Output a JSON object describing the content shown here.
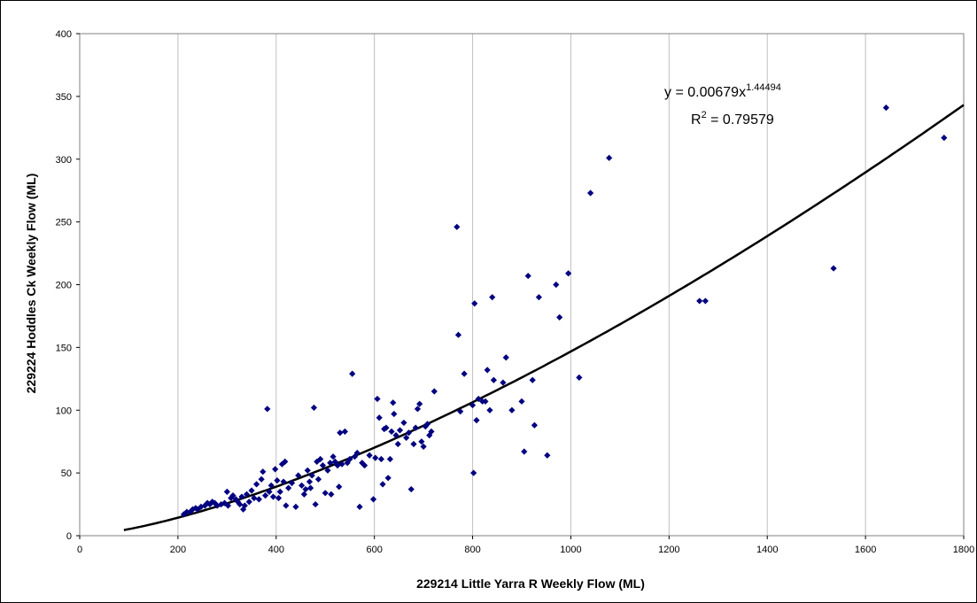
{
  "chart_data": {
    "type": "scatter",
    "title": "",
    "xlabel": "229214 Little Yarra R Weekly Flow (ML)",
    "ylabel": "229224 Hoddles Ck Weekly Flow (ML)",
    "xlim": [
      0,
      1800
    ],
    "ylim": [
      0,
      400
    ],
    "xticks": [
      0,
      200,
      400,
      600,
      800,
      1000,
      1200,
      1400,
      1600,
      1800
    ],
    "yticks": [
      0,
      50,
      100,
      150,
      200,
      250,
      300,
      350,
      400
    ],
    "grid": "vertical",
    "legend": "none",
    "marker": "diamond",
    "marker_color": "#000080",
    "trendline": {
      "type": "power",
      "a": 0.00679,
      "b": 1.44494,
      "x_range": [
        90,
        1800
      ],
      "color": "#000000",
      "equation_text": "y = 0.00679x",
      "equation_exponent": "1.44494",
      "r2_prefix": "R",
      "r2_exponent": "2",
      "r2_suffix": " = 0.79579"
    },
    "points": [
      [
        212,
        17
      ],
      [
        218,
        19
      ],
      [
        225,
        19
      ],
      [
        230,
        21
      ],
      [
        236,
        22
      ],
      [
        240,
        21
      ],
      [
        247,
        23
      ],
      [
        255,
        24
      ],
      [
        260,
        26
      ],
      [
        265,
        25
      ],
      [
        270,
        27
      ],
      [
        275,
        26
      ],
      [
        280,
        24
      ],
      [
        288,
        25
      ],
      [
        295,
        26
      ],
      [
        300,
        35
      ],
      [
        302,
        24
      ],
      [
        308,
        30
      ],
      [
        312,
        32
      ],
      [
        318,
        29
      ],
      [
        322,
        27
      ],
      [
        326,
        25
      ],
      [
        330,
        31
      ],
      [
        333,
        21
      ],
      [
        336,
        24
      ],
      [
        340,
        33
      ],
      [
        345,
        27
      ],
      [
        350,
        36
      ],
      [
        355,
        30
      ],
      [
        360,
        41
      ],
      [
        365,
        29
      ],
      [
        370,
        45
      ],
      [
        373,
        51
      ],
      [
        378,
        32
      ],
      [
        382,
        101
      ],
      [
        386,
        35
      ],
      [
        390,
        40
      ],
      [
        394,
        31
      ],
      [
        398,
        53
      ],
      [
        402,
        44
      ],
      [
        405,
        30
      ],
      [
        408,
        35
      ],
      [
        412,
        57
      ],
      [
        415,
        43
      ],
      [
        418,
        59
      ],
      [
        420,
        24
      ],
      [
        425,
        38
      ],
      [
        432,
        42
      ],
      [
        440,
        23
      ],
      [
        445,
        48
      ],
      [
        452,
        40
      ],
      [
        457,
        33
      ],
      [
        460,
        37
      ],
      [
        464,
        52
      ],
      [
        468,
        43
      ],
      [
        470,
        38
      ],
      [
        473,
        48
      ],
      [
        477,
        102
      ],
      [
        480,
        25
      ],
      [
        483,
        59
      ],
      [
        486,
        45
      ],
      [
        490,
        61
      ],
      [
        495,
        56
      ],
      [
        500,
        34
      ],
      [
        505,
        52
      ],
      [
        510,
        58
      ],
      [
        512,
        33
      ],
      [
        516,
        63
      ],
      [
        520,
        59
      ],
      [
        525,
        56
      ],
      [
        528,
        39
      ],
      [
        530,
        82
      ],
      [
        534,
        57
      ],
      [
        540,
        83
      ],
      [
        545,
        58
      ],
      [
        550,
        61
      ],
      [
        555,
        129
      ],
      [
        560,
        63
      ],
      [
        565,
        66
      ],
      [
        570,
        23
      ],
      [
        575,
        58
      ],
      [
        580,
        56
      ],
      [
        590,
        64
      ],
      [
        598,
        29
      ],
      [
        602,
        62
      ],
      [
        606,
        109
      ],
      [
        610,
        94
      ],
      [
        614,
        61
      ],
      [
        617,
        41
      ],
      [
        620,
        85
      ],
      [
        624,
        86
      ],
      [
        628,
        46
      ],
      [
        632,
        61
      ],
      [
        635,
        83
      ],
      [
        638,
        106
      ],
      [
        640,
        97
      ],
      [
        644,
        80
      ],
      [
        648,
        73
      ],
      [
        652,
        84
      ],
      [
        660,
        90
      ],
      [
        665,
        78
      ],
      [
        670,
        82
      ],
      [
        675,
        37
      ],
      [
        680,
        73
      ],
      [
        684,
        86
      ],
      [
        688,
        101
      ],
      [
        692,
        105
      ],
      [
        696,
        75
      ],
      [
        700,
        71
      ],
      [
        704,
        87
      ],
      [
        708,
        89
      ],
      [
        712,
        80
      ],
      [
        716,
        83
      ],
      [
        722,
        115
      ],
      [
        768,
        246
      ],
      [
        771,
        160
      ],
      [
        775,
        99
      ],
      [
        783,
        129
      ],
      [
        800,
        104
      ],
      [
        802,
        50
      ],
      [
        804,
        185
      ],
      [
        808,
        92
      ],
      [
        812,
        109
      ],
      [
        820,
        107
      ],
      [
        826,
        107
      ],
      [
        830,
        132
      ],
      [
        835,
        100
      ],
      [
        840,
        190
      ],
      [
        843,
        124
      ],
      [
        862,
        122
      ],
      [
        868,
        142
      ],
      [
        880,
        100
      ],
      [
        900,
        107
      ],
      [
        905,
        67
      ],
      [
        913,
        207
      ],
      [
        922,
        124
      ],
      [
        926,
        88
      ],
      [
        935,
        190
      ],
      [
        952,
        64
      ],
      [
        970,
        200
      ],
      [
        977,
        174
      ],
      [
        995,
        209
      ],
      [
        1017,
        126
      ],
      [
        1040,
        273
      ],
      [
        1078,
        301
      ],
      [
        1262,
        187
      ],
      [
        1274,
        187
      ],
      [
        1535,
        213
      ],
      [
        1642,
        341
      ],
      [
        1760,
        317
      ]
    ]
  }
}
